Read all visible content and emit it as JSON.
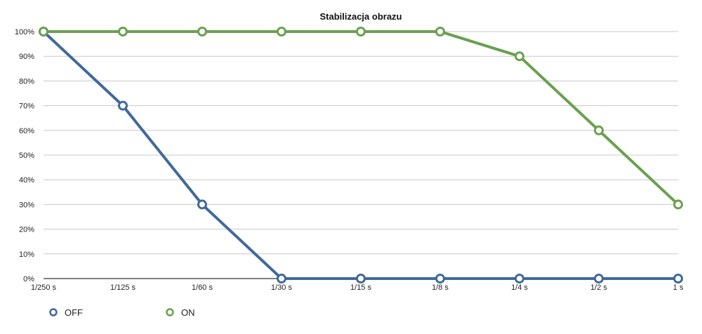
{
  "chart_data": {
    "type": "line",
    "title": "Stabilizacja obrazu",
    "categories": [
      "1/250 s",
      "1/125 s",
      "1/60 s",
      "1/30 s",
      "1/15 s",
      "1/8 s",
      "1/4 s",
      "1/2 s",
      "1 s"
    ],
    "ylim": [
      0,
      100
    ],
    "y_ticks": [
      "0%",
      "10%",
      "20%",
      "30%",
      "40%",
      "50%",
      "60%",
      "70%",
      "80%",
      "90%",
      "100%"
    ],
    "grid": true,
    "legend_position": "bottom-left",
    "series": [
      {
        "name": "OFF",
        "color": "#41699a",
        "values": [
          100,
          70,
          30,
          0,
          0,
          0,
          0,
          0,
          0
        ]
      },
      {
        "name": "ON",
        "color": "#6aa04f",
        "values": [
          100,
          100,
          100,
          100,
          100,
          100,
          90,
          60,
          30
        ]
      }
    ]
  }
}
